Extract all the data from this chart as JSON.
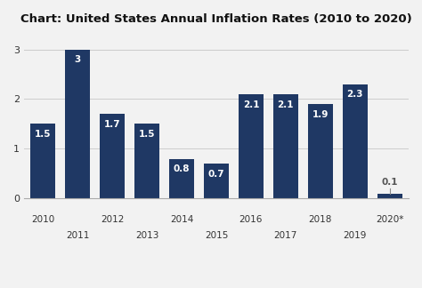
{
  "title": "Chart: United States Annual Inflation Rates (2010 to 2020)",
  "years": [
    "2010",
    "2011",
    "2012",
    "2013",
    "2014",
    "2015",
    "2016",
    "2017",
    "2018",
    "2019",
    "2020*"
  ],
  "values": [
    1.5,
    3.0,
    1.7,
    1.5,
    0.8,
    0.7,
    2.1,
    2.1,
    1.9,
    2.3,
    0.1
  ],
  "value_labels": [
    "1.5",
    "3",
    "1.7",
    "1.5",
    "0.8",
    "0.7",
    "2.1",
    "2.1",
    "1.9",
    "2.3",
    "0.1"
  ],
  "bar_color": "#1f3864",
  "label_color_inside": "#ffffff",
  "label_color_outside": "#555555",
  "ylim": [
    0,
    3.3
  ],
  "yticks": [
    0,
    1,
    2,
    3
  ],
  "bg_color": "#f2f2f2",
  "grid_color": "#cccccc",
  "title_fontsize": 9.5,
  "label_fontsize": 7.5,
  "tick_fontsize": 8,
  "inside_threshold": 0.5
}
